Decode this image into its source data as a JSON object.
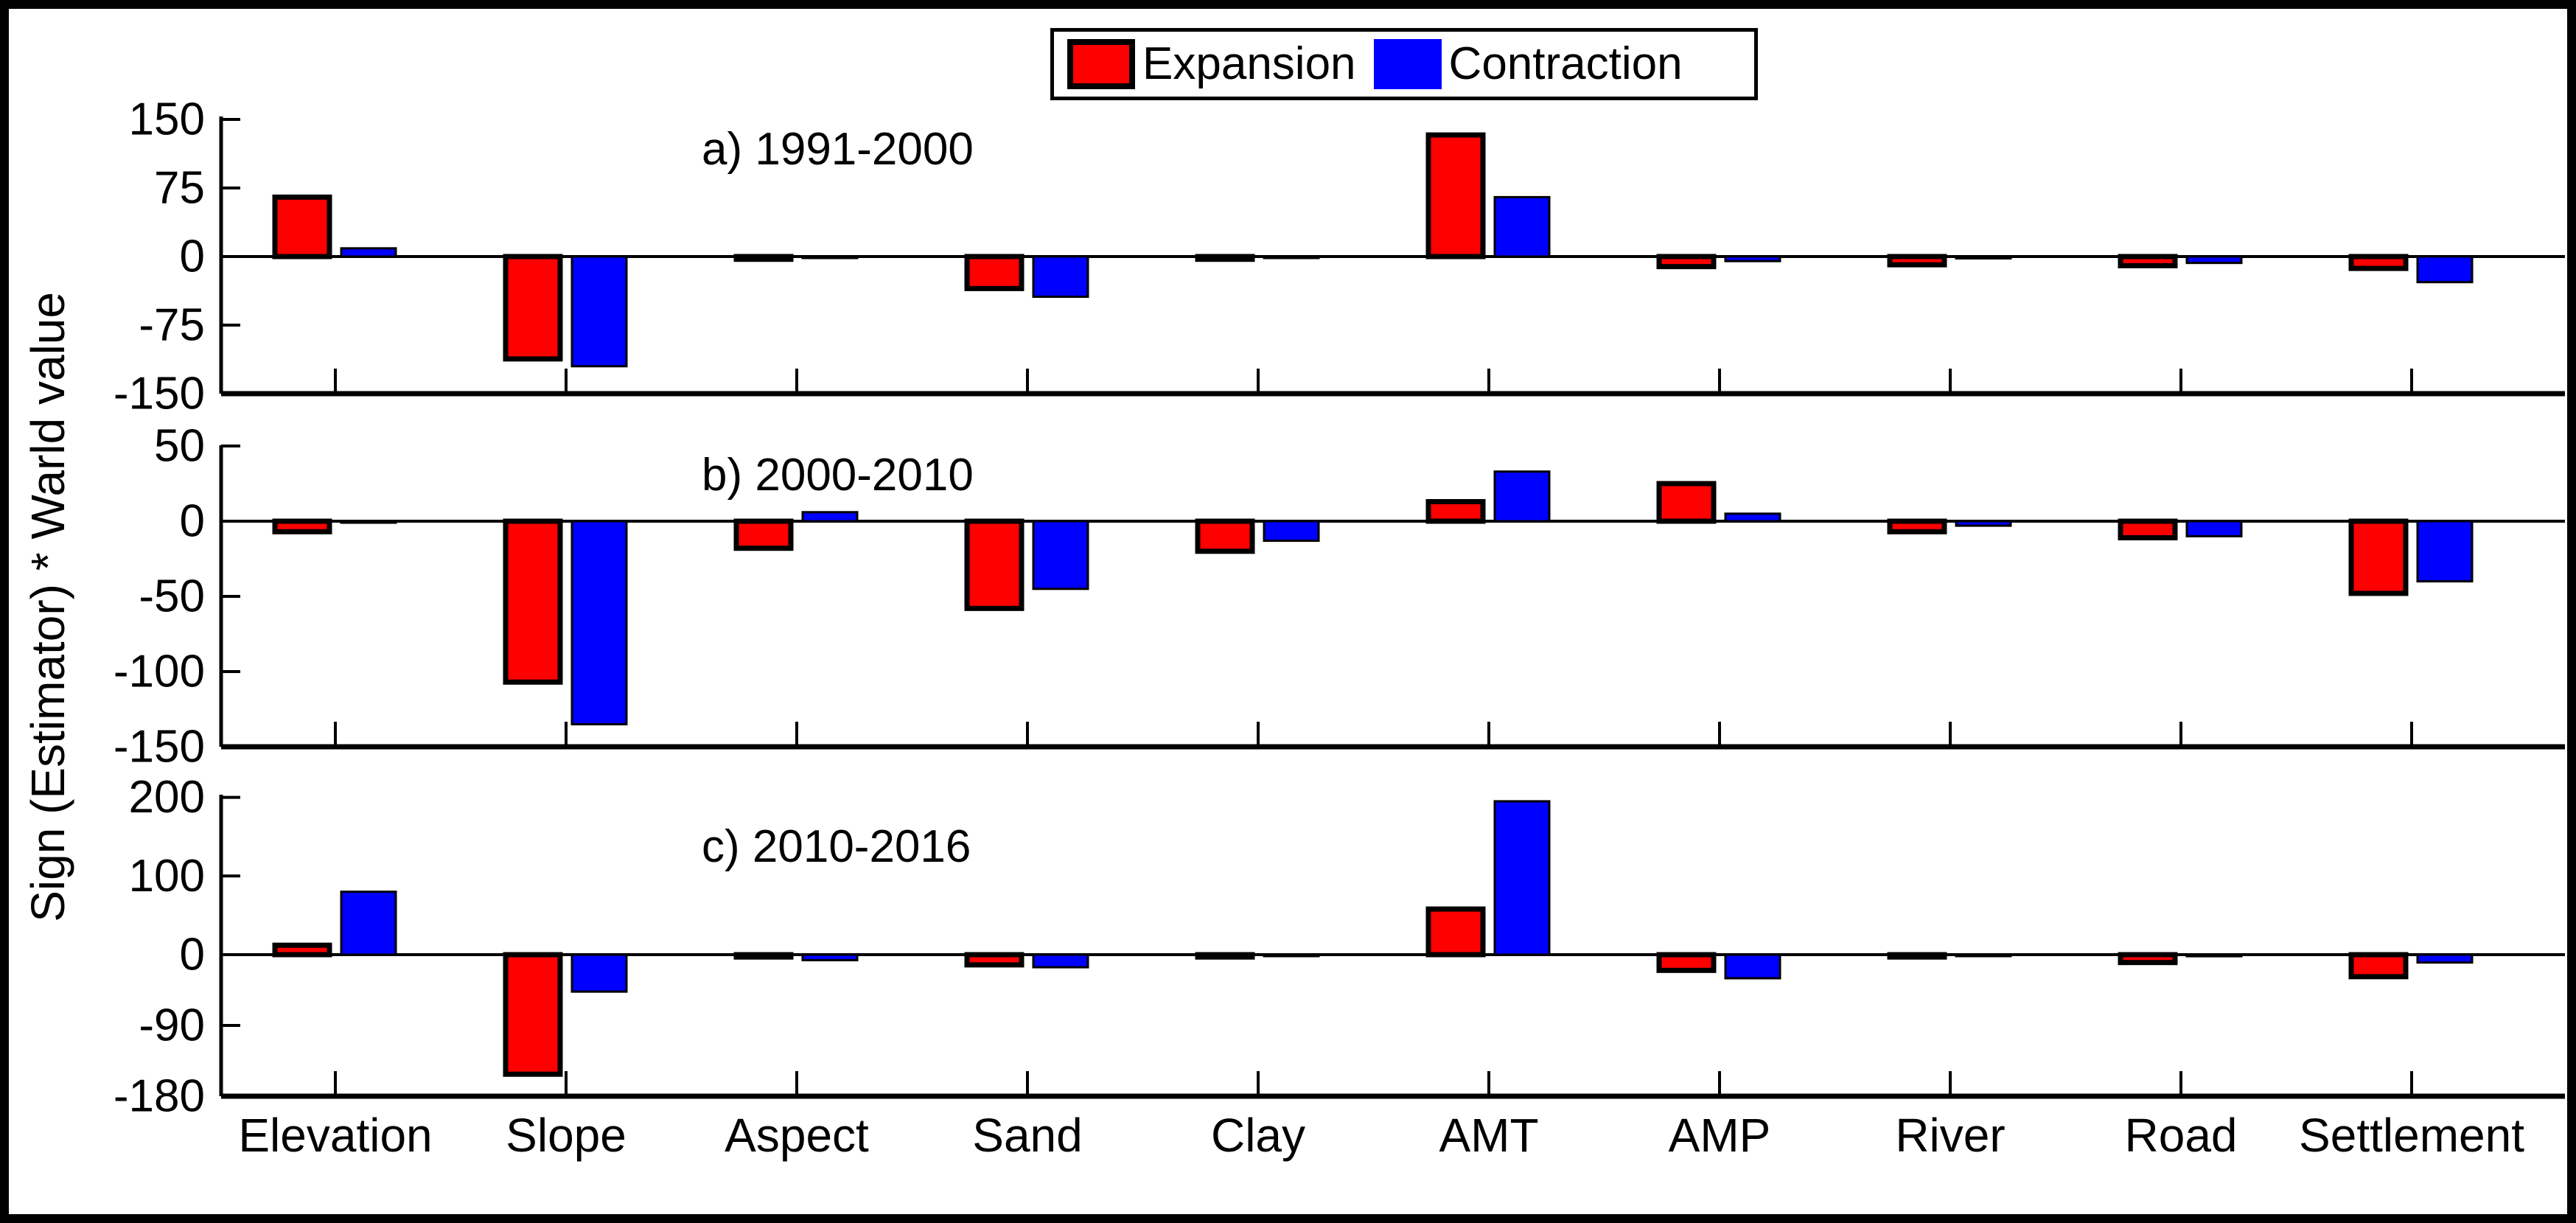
{
  "figure": {
    "type": "grouped-bar-figure",
    "background": "#ffffff",
    "border_color": "#000000"
  },
  "ylabel": "Sign (Estimator) * Warld value",
  "legend": {
    "position": "top-center",
    "items": [
      {
        "label": "Expansion",
        "color": "#ff0000"
      },
      {
        "label": "Contraction",
        "color": "#0000ff"
      }
    ]
  },
  "categories": [
    "Elevation",
    "Slope",
    "Aspect",
    "Sand",
    "Clay",
    "AMT",
    "AMP",
    "River",
    "Road",
    "Settlement"
  ],
  "chart_data": [
    {
      "type": "bar",
      "panel": "a",
      "title": "a) 1991-2000",
      "xlabel": "",
      "ylabel": "Sign (Estimator) * Warld value",
      "ylim": [
        -150,
        150
      ],
      "yticks": [
        150,
        75,
        0,
        -75,
        -150
      ],
      "grid": false,
      "categories": [
        "Elevation",
        "Slope",
        "Aspect",
        "Sand",
        "Clay",
        "AMT",
        "AMP",
        "River",
        "Road",
        "Settlement"
      ],
      "series": [
        {
          "name": "Expansion",
          "color": "#ff0000",
          "values": [
            65,
            -112,
            -3,
            -35,
            -3,
            133,
            -11,
            -9,
            -10,
            -13
          ]
        },
        {
          "name": "Contraction",
          "color": "#0000ff",
          "values": [
            9,
            -120,
            -1,
            -44,
            -1,
            65,
            -5,
            -2,
            -7,
            -28
          ]
        }
      ]
    },
    {
      "type": "bar",
      "panel": "b",
      "title": "b) 2000-2010",
      "xlabel": "",
      "ylabel": "Sign (Estimator) * Warld value",
      "ylim": [
        -150,
        50
      ],
      "yticks": [
        50,
        0,
        -50,
        -100,
        -150
      ],
      "grid": false,
      "categories": [
        "Elevation",
        "Slope",
        "Aspect",
        "Sand",
        "Clay",
        "AMT",
        "AMP",
        "River",
        "Road",
        "Settlement"
      ],
      "series": [
        {
          "name": "Expansion",
          "color": "#ff0000",
          "values": [
            -7,
            -107,
            -18,
            -58,
            -20,
            13,
            25,
            -7,
            -11,
            -48
          ]
        },
        {
          "name": "Contraction",
          "color": "#0000ff",
          "values": [
            -1,
            -135,
            6,
            -45,
            -13,
            33,
            5,
            -3,
            -10,
            -40
          ]
        }
      ]
    },
    {
      "type": "bar",
      "panel": "c",
      "title": "c) 2010-2016",
      "xlabel": "",
      "ylabel": "Sign (Estimator) * Warld value",
      "ylim": [
        -180,
        200
      ],
      "yticks": [
        200,
        100,
        0,
        -90,
        -180
      ],
      "grid": false,
      "categories": [
        "Elevation",
        "Slope",
        "Aspect",
        "Sand",
        "Clay",
        "AMT",
        "AMP",
        "River",
        "Road",
        "Settlement"
      ],
      "series": [
        {
          "name": "Expansion",
          "color": "#ff0000",
          "values": [
            12,
            -152,
            -3,
            -13,
            -3,
            58,
            -20,
            -3,
            -10,
            -28
          ]
        },
        {
          "name": "Contraction",
          "color": "#0000ff",
          "values": [
            80,
            -47,
            -7,
            -16,
            -1,
            195,
            -30,
            -1,
            -2,
            -10
          ]
        }
      ]
    }
  ]
}
